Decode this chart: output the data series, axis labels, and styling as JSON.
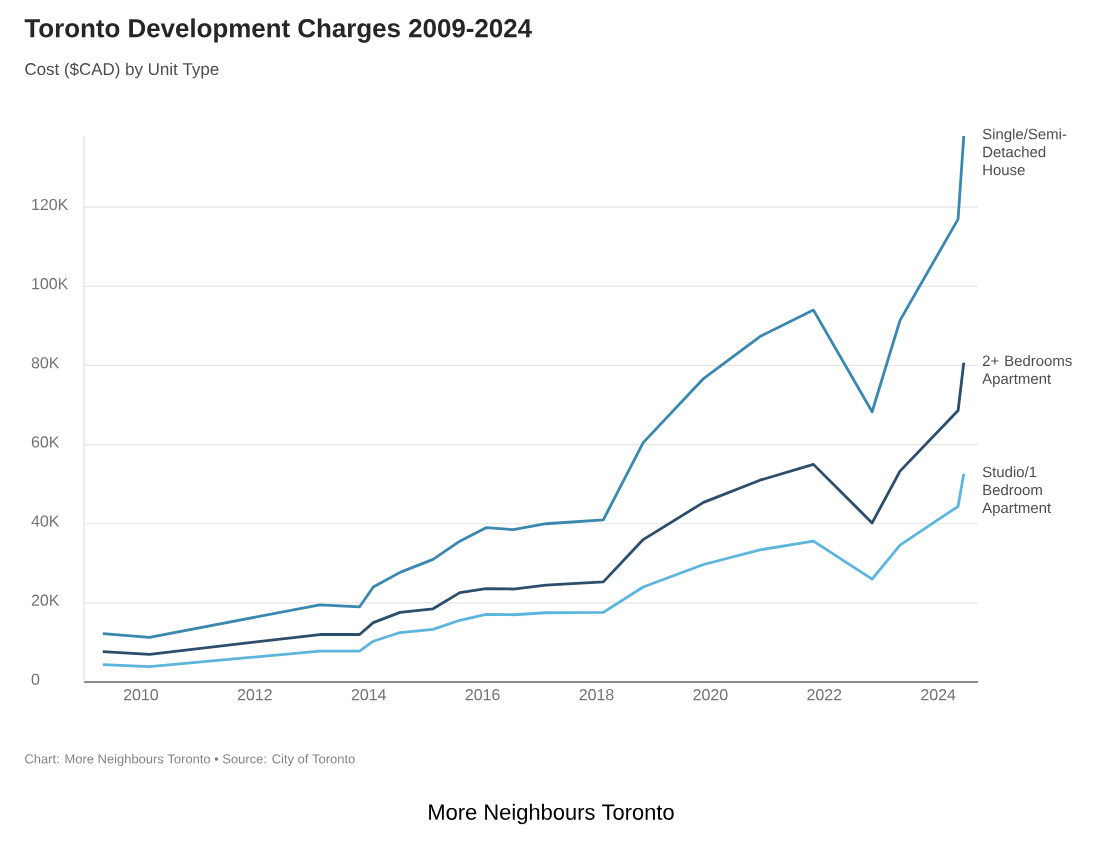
{
  "chart_data": {
    "type": "line",
    "title": "Toronto Development Charges 2009-2024",
    "subtitle": "Cost ($CAD) by Unit Type",
    "annotations": [
      "Chart: More Neighbours Toronto • Source: City of Toronto",
      "More Neighbours Toronto"
    ],
    "x": [
      2009.33,
      2010.15,
      2013.14,
      2013.84,
      2014.08,
      2014.55,
      2015.13,
      2015.6,
      2016.06,
      2016.54,
      2017.11,
      2018.12,
      2018.82,
      2019.88,
      2020.87,
      2021.81,
      2022.84,
      2023.33,
      2024.35,
      2024.45
    ],
    "series": [
      {
        "name": "Single/Semi-Detached House",
        "color": "#3a87b0",
        "values": [
          12200,
          11300,
          19500,
          19000,
          24000,
          27700,
          31000,
          35600,
          39000,
          38500,
          40000,
          41000,
          60500,
          76700,
          87300,
          94000,
          68300,
          91400,
          117000,
          138000
        ]
      },
      {
        "name": "2+ Bedrooms Apartment",
        "color": "#2c4d6b",
        "values": [
          7700,
          7000,
          12000,
          12000,
          15000,
          17600,
          18500,
          22600,
          23600,
          23500,
          24500,
          25300,
          36000,
          45400,
          51000,
          55000,
          40200,
          53300,
          68600,
          80700
        ]
      },
      {
        "name": "Studio/1 Bedroom Apartment",
        "color": "#5bb5dc",
        "values": [
          4400,
          3900,
          7800,
          7800,
          10300,
          12500,
          13300,
          15600,
          17100,
          17000,
          17500,
          17600,
          24000,
          29700,
          33400,
          35600,
          26000,
          34600,
          44400,
          52600
        ]
      }
    ],
    "xlim": [
      2009,
      2024.7
    ],
    "ylim": [
      0,
      138000
    ],
    "xticks": [
      2010,
      2012,
      2014,
      2016,
      2018,
      2020,
      2022,
      2024
    ],
    "yticks": [
      {
        "value": 0,
        "label": "0"
      },
      {
        "value": 20000,
        "label": "20K"
      },
      {
        "value": 40000,
        "label": "40K"
      },
      {
        "value": 60000,
        "label": "60K"
      },
      {
        "value": 80000,
        "label": "80K"
      },
      {
        "value": 100000,
        "label": "100K"
      },
      {
        "value": 120000,
        "label": "120K"
      }
    ],
    "grid": "y"
  }
}
